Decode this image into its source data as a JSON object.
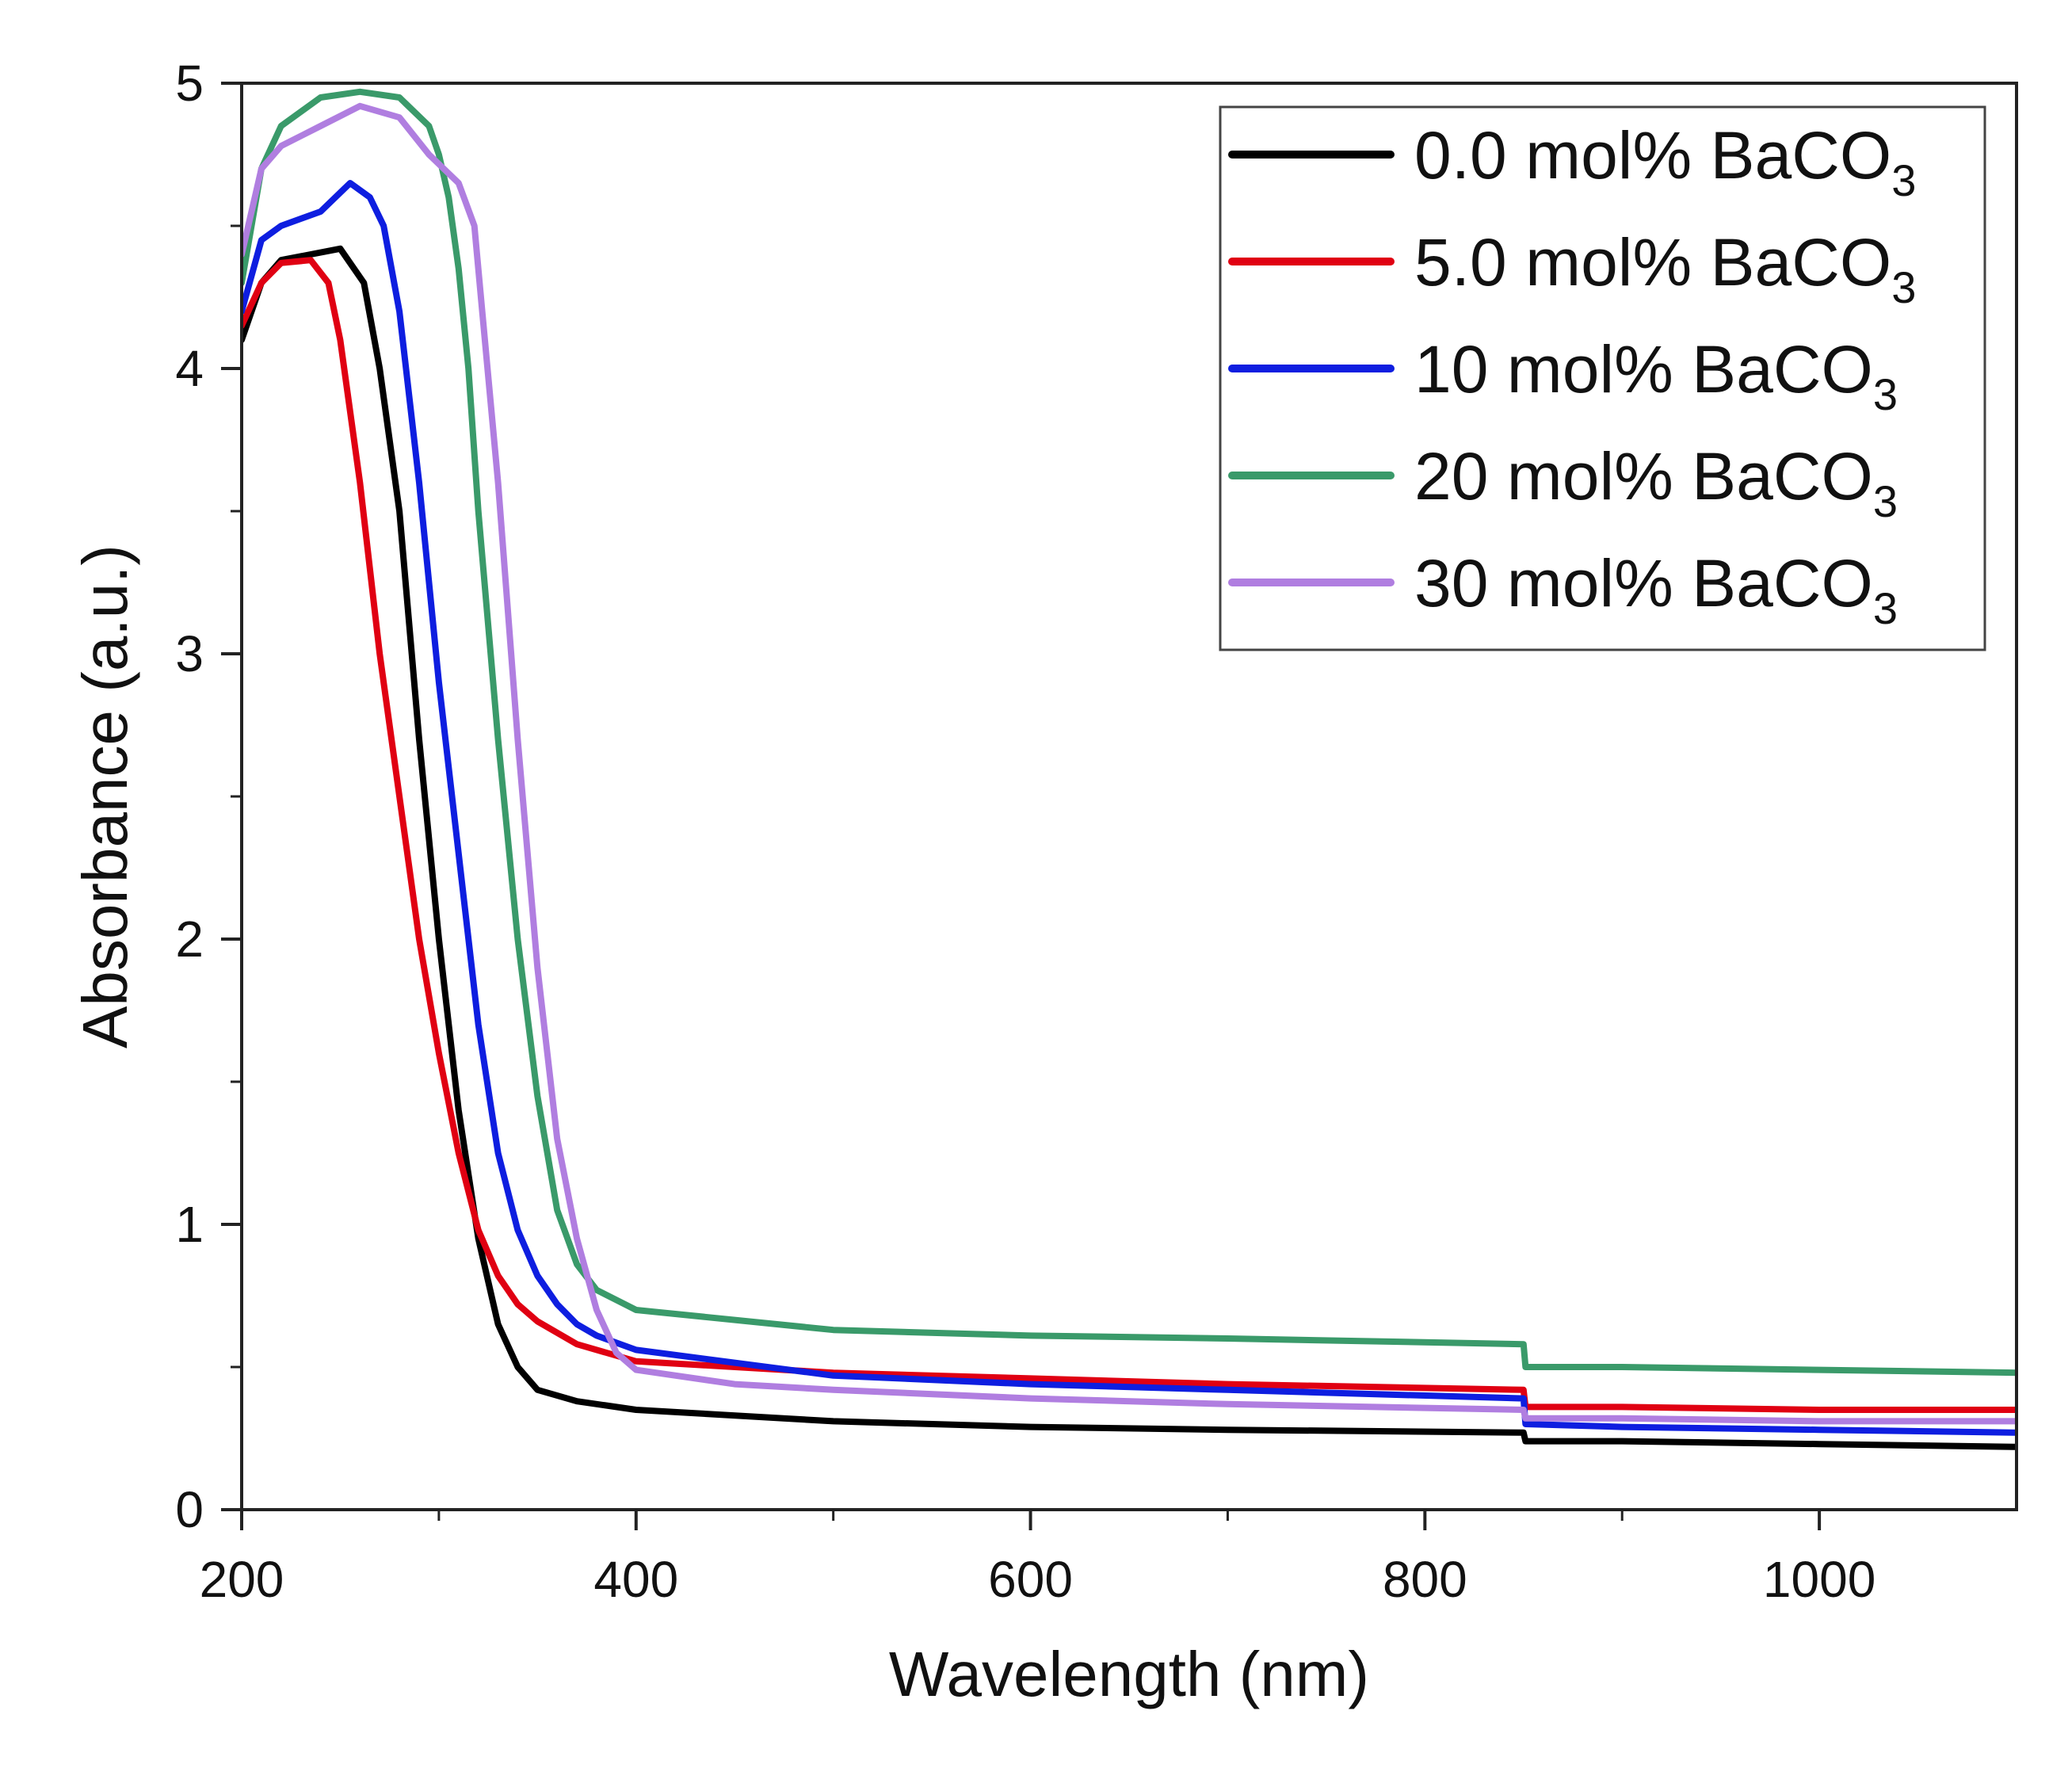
{
  "chart_data": {
    "type": "line",
    "title": "",
    "xlabel": "Wavelength (nm)",
    "ylabel": "Absorbance (a.u.)",
    "xlim": [
      200,
      1100
    ],
    "ylim": [
      0,
      5
    ],
    "x_ticks": [
      200,
      400,
      600,
      800,
      1000
    ],
    "y_ticks": [
      0,
      1,
      2,
      3,
      4,
      5
    ],
    "x_tick_labels": [
      "200",
      "400",
      "600",
      "800",
      "1000"
    ],
    "y_tick_labels": [
      "0",
      "1",
      "2",
      "3",
      "4",
      "5"
    ],
    "grid": false,
    "legend_position": "top-right",
    "series": [
      {
        "name": "0.0 mol% BaCO3",
        "label_main": "0.0 mol% BaCO",
        "label_sub": "3",
        "color": "#000000",
        "points": [
          [
            200,
            4.1
          ],
          [
            210,
            4.3
          ],
          [
            220,
            4.38
          ],
          [
            235,
            4.4
          ],
          [
            250,
            4.42
          ],
          [
            262,
            4.3
          ],
          [
            270,
            4.0
          ],
          [
            280,
            3.5
          ],
          [
            290,
            2.7
          ],
          [
            300,
            2.0
          ],
          [
            310,
            1.4
          ],
          [
            320,
            0.95
          ],
          [
            330,
            0.65
          ],
          [
            340,
            0.5
          ],
          [
            350,
            0.42
          ],
          [
            370,
            0.38
          ],
          [
            400,
            0.35
          ],
          [
            500,
            0.31
          ],
          [
            600,
            0.29
          ],
          [
            700,
            0.28
          ],
          [
            850,
            0.27
          ],
          [
            851,
            0.24
          ],
          [
            900,
            0.24
          ],
          [
            1000,
            0.23
          ],
          [
            1100,
            0.22
          ]
        ]
      },
      {
        "name": "5.0 mol% BaCO3",
        "label_main": "5.0 mol% BaCO",
        "label_sub": "3",
        "color": "#e00012",
        "points": [
          [
            200,
            4.15
          ],
          [
            210,
            4.3
          ],
          [
            220,
            4.37
          ],
          [
            235,
            4.38
          ],
          [
            244,
            4.3
          ],
          [
            250,
            4.1
          ],
          [
            260,
            3.6
          ],
          [
            270,
            3.0
          ],
          [
            280,
            2.5
          ],
          [
            290,
            2.0
          ],
          [
            300,
            1.6
          ],
          [
            310,
            1.25
          ],
          [
            320,
            0.98
          ],
          [
            330,
            0.82
          ],
          [
            340,
            0.72
          ],
          [
            350,
            0.66
          ],
          [
            370,
            0.58
          ],
          [
            400,
            0.52
          ],
          [
            500,
            0.48
          ],
          [
            600,
            0.46
          ],
          [
            700,
            0.44
          ],
          [
            850,
            0.42
          ],
          [
            851,
            0.36
          ],
          [
            900,
            0.36
          ],
          [
            1000,
            0.35
          ],
          [
            1100,
            0.35
          ]
        ]
      },
      {
        "name": "10 mol% BaCO3",
        "label_main": "10 mol% BaCO",
        "label_sub": "3",
        "color": "#0e1ee0",
        "points": [
          [
            200,
            4.2
          ],
          [
            210,
            4.45
          ],
          [
            220,
            4.5
          ],
          [
            240,
            4.55
          ],
          [
            255,
            4.65
          ],
          [
            265,
            4.6
          ],
          [
            272,
            4.5
          ],
          [
            280,
            4.2
          ],
          [
            290,
            3.6
          ],
          [
            300,
            2.9
          ],
          [
            310,
            2.3
          ],
          [
            320,
            1.7
          ],
          [
            330,
            1.25
          ],
          [
            340,
            0.98
          ],
          [
            350,
            0.82
          ],
          [
            360,
            0.72
          ],
          [
            370,
            0.65
          ],
          [
            380,
            0.61
          ],
          [
            400,
            0.56
          ],
          [
            500,
            0.47
          ],
          [
            600,
            0.44
          ],
          [
            700,
            0.42
          ],
          [
            850,
            0.39
          ],
          [
            851,
            0.3
          ],
          [
            900,
            0.29
          ],
          [
            1000,
            0.28
          ],
          [
            1100,
            0.27
          ]
        ]
      },
      {
        "name": "20 mol% BaCO3",
        "label_main": "20 mol% BaCO",
        "label_sub": "3",
        "color": "#3a9a6a",
        "points": [
          [
            200,
            4.3
          ],
          [
            210,
            4.7
          ],
          [
            220,
            4.85
          ],
          [
            240,
            4.95
          ],
          [
            260,
            4.97
          ],
          [
            280,
            4.95
          ],
          [
            295,
            4.85
          ],
          [
            300,
            4.75
          ],
          [
            305,
            4.6
          ],
          [
            310,
            4.35
          ],
          [
            315,
            4.0
          ],
          [
            320,
            3.5
          ],
          [
            330,
            2.7
          ],
          [
            340,
            2.0
          ],
          [
            350,
            1.45
          ],
          [
            360,
            1.05
          ],
          [
            370,
            0.86
          ],
          [
            380,
            0.77
          ],
          [
            400,
            0.7
          ],
          [
            500,
            0.63
          ],
          [
            600,
            0.61
          ],
          [
            700,
            0.6
          ],
          [
            850,
            0.58
          ],
          [
            851,
            0.5
          ],
          [
            900,
            0.5
          ],
          [
            1000,
            0.49
          ],
          [
            1100,
            0.48
          ]
        ]
      },
      {
        "name": "30 mol% BaCO3",
        "label_main": "30 mol% BaCO",
        "label_sub": "3",
        "color": "#b07ee0",
        "points": [
          [
            200,
            4.4
          ],
          [
            210,
            4.7
          ],
          [
            220,
            4.78
          ],
          [
            240,
            4.85
          ],
          [
            260,
            4.92
          ],
          [
            280,
            4.88
          ],
          [
            295,
            4.75
          ],
          [
            310,
            4.65
          ],
          [
            318,
            4.5
          ],
          [
            322,
            4.2
          ],
          [
            330,
            3.6
          ],
          [
            340,
            2.7
          ],
          [
            350,
            1.9
          ],
          [
            360,
            1.3
          ],
          [
            370,
            0.95
          ],
          [
            380,
            0.7
          ],
          [
            390,
            0.55
          ],
          [
            400,
            0.49
          ],
          [
            450,
            0.44
          ],
          [
            500,
            0.42
          ],
          [
            600,
            0.39
          ],
          [
            700,
            0.37
          ],
          [
            850,
            0.35
          ],
          [
            851,
            0.32
          ],
          [
            900,
            0.32
          ],
          [
            1000,
            0.31
          ],
          [
            1100,
            0.31
          ]
        ]
      }
    ]
  }
}
